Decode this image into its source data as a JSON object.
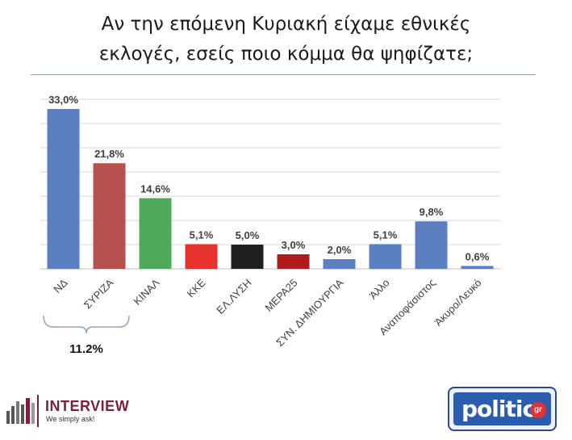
{
  "title": {
    "line1": "Αν την επόμενη Κυριακή είχαμε εθνικές",
    "line2": "εκλογές, εσείς ποιο κόμμα θα ψηφίζατε;"
  },
  "chart_data": {
    "type": "bar",
    "categories": [
      "ΝΔ",
      "ΣΥΡΙΖΑ",
      "ΚΙΝΑΛ",
      "ΚΚΕ",
      "ΕΛ.ΛΥΣΗ",
      "ΜΕΡΑ25",
      "ΣΥΝ. ΔΗΜΙΟΥΡΓΙΑ",
      "Άλλο",
      "Αναποφάσιστος",
      "Άκυρο/Λευκό"
    ],
    "values": [
      33.0,
      21.8,
      14.6,
      5.1,
      5.0,
      3.0,
      2.0,
      5.1,
      9.8,
      0.6
    ],
    "value_labels": [
      "33,0%",
      "21,8%",
      "14,6%",
      "5,1%",
      "5,0%",
      "3,0%",
      "2,0%",
      "5,1%",
      "9,8%",
      "0,6%"
    ],
    "colors": [
      "#5b7fc0",
      "#b5524d",
      "#4eaa5a",
      "#e8322e",
      "#1f1f1f",
      "#b01c1c",
      "#5b7fc0",
      "#5b7fc0",
      "#5b7fc0",
      "#5b7fc0"
    ],
    "ylim": [
      0,
      35
    ],
    "grid": true,
    "xlabel": "",
    "ylabel": "",
    "annotation": {
      "text": "11.2%",
      "span_categories": [
        "ΝΔ",
        "ΣΥΡΙΖΑ"
      ]
    }
  },
  "logos": {
    "interview_name": "INTERVIEW",
    "interview_tag": "We simply ask!",
    "politic_name": "politic",
    "politic_suffix": "gr"
  }
}
